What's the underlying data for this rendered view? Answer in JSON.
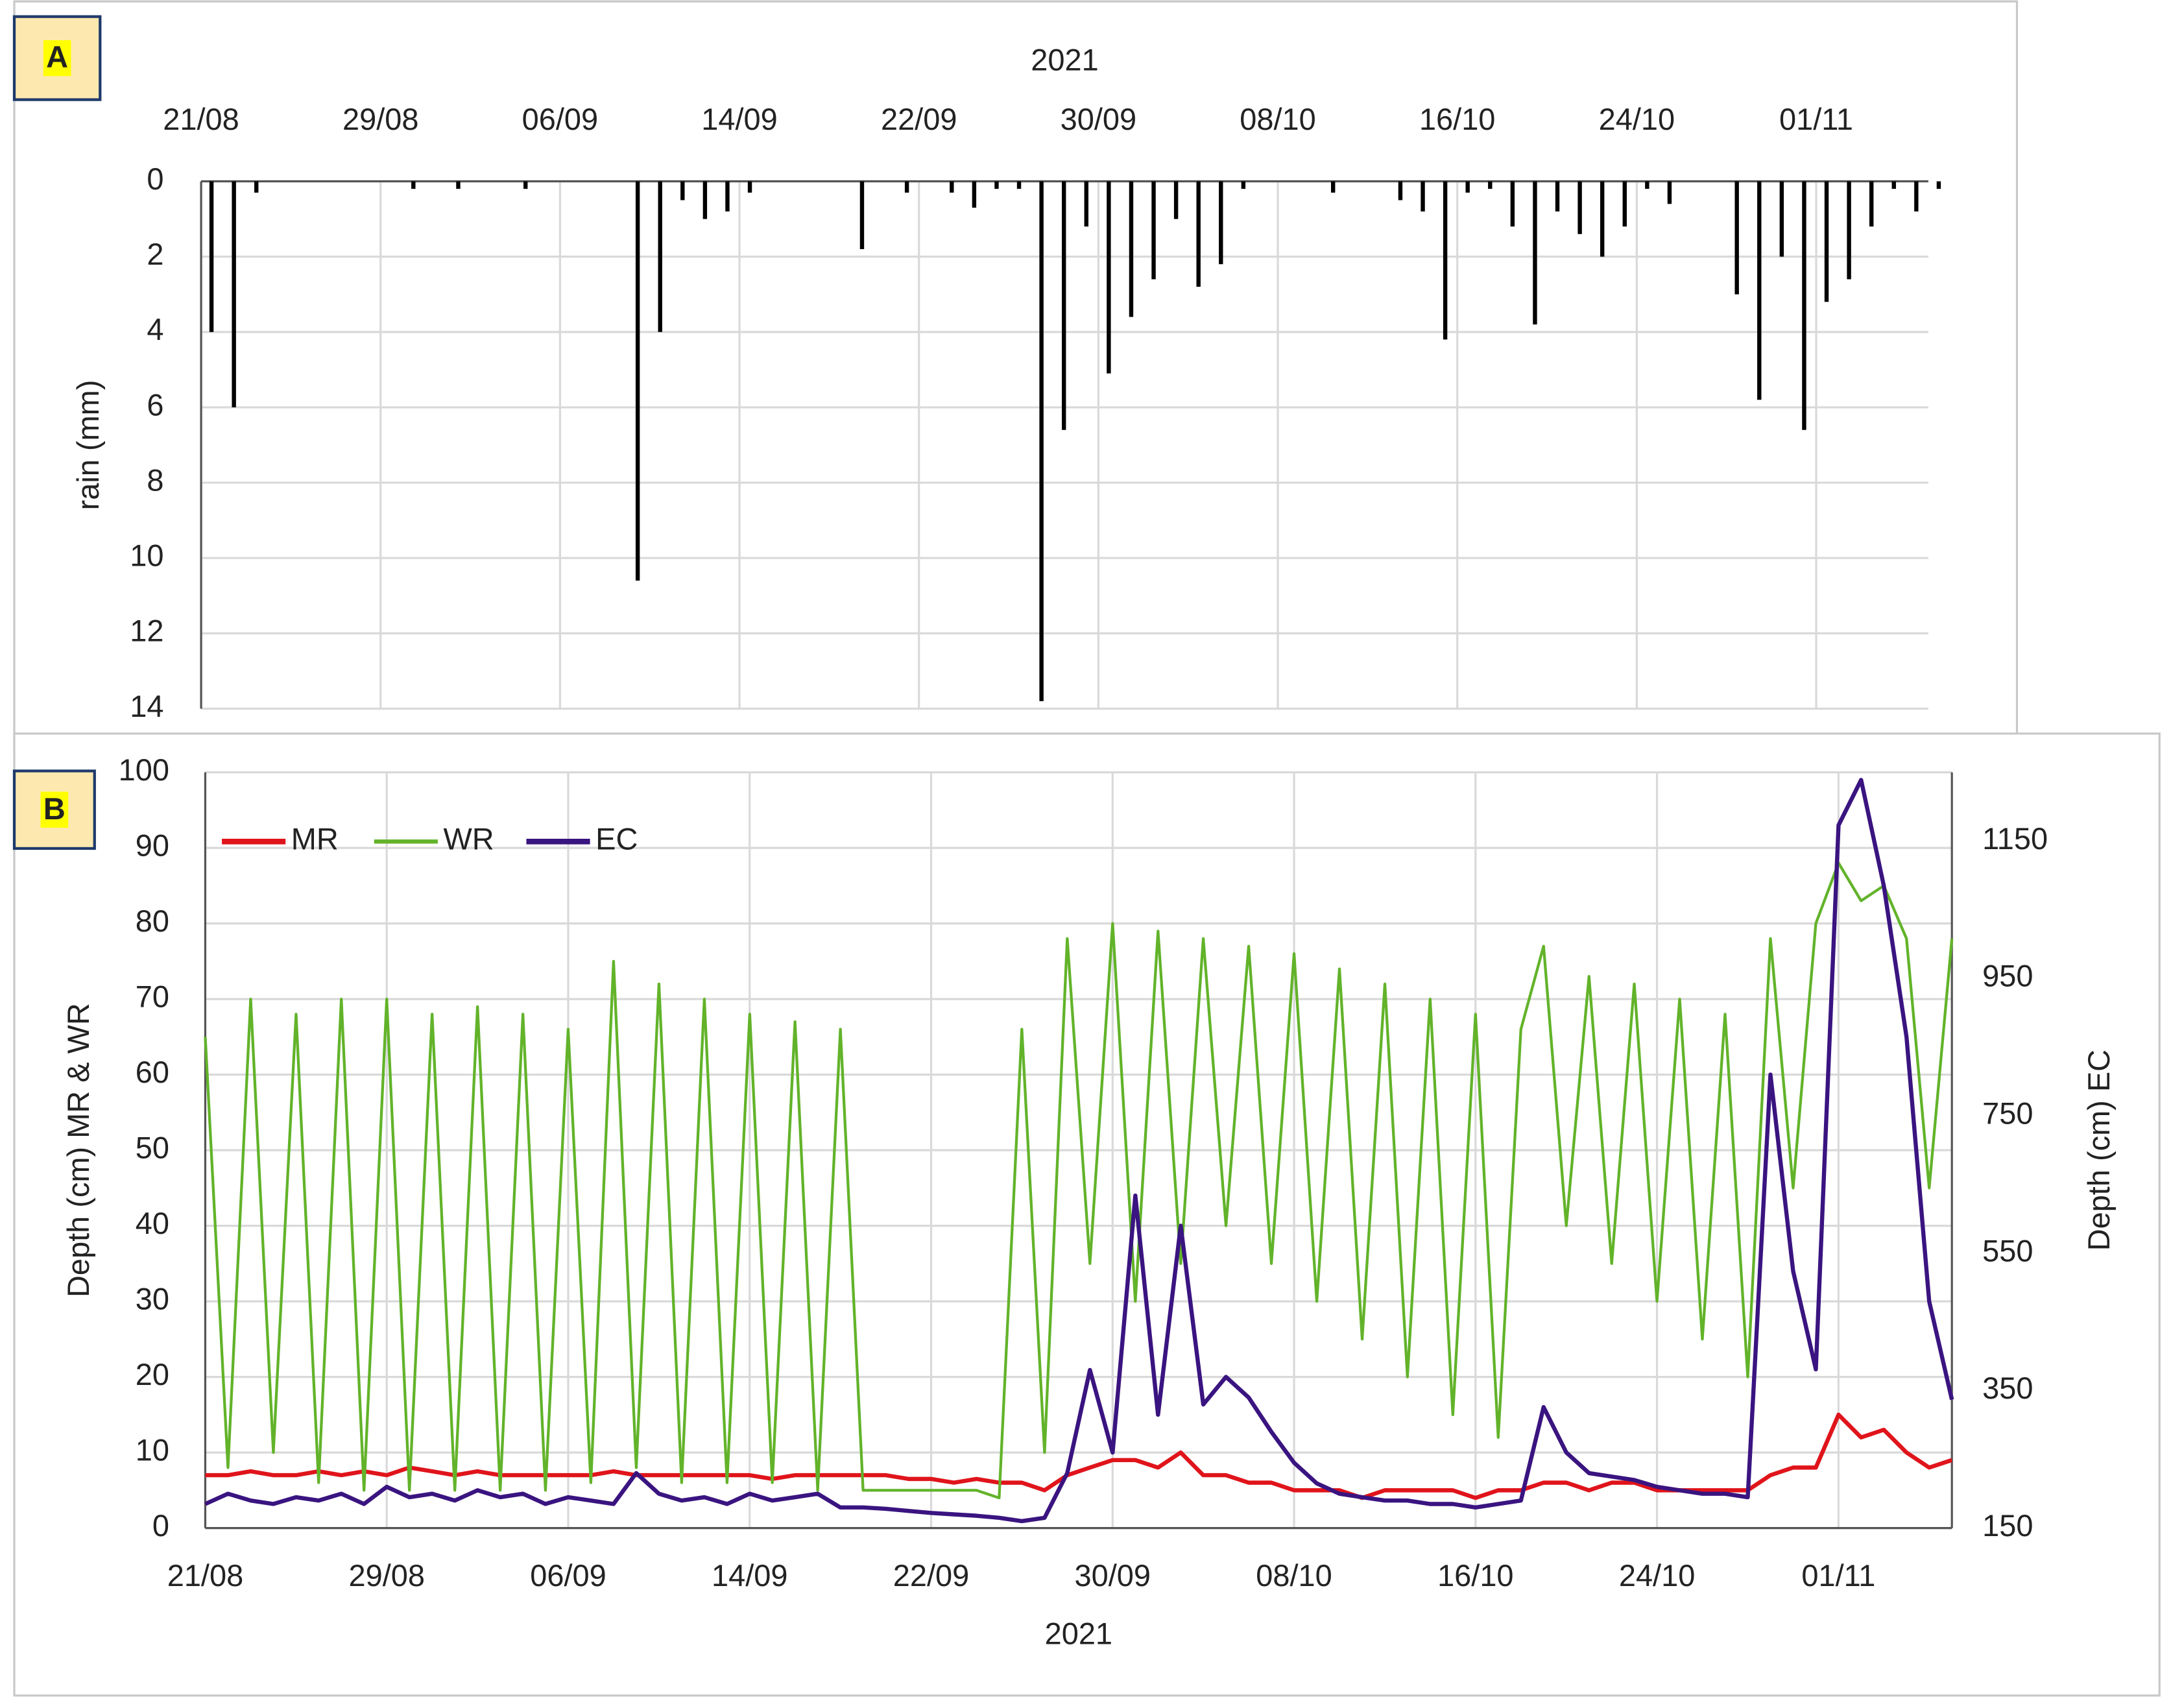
{
  "chart_data": [
    {
      "type": "bar",
      "panel_label": "A",
      "xlabel": "2021",
      "ylabel": "rain (mm)",
      "color": "#000000",
      "x_axis_position": "top",
      "y_inverted": true,
      "grid": true,
      "x": [
        "2021-08-21",
        "2021-08-22",
        "2021-08-23",
        "2021-08-24",
        "2021-08-25",
        "2021-08-26",
        "2021-08-27",
        "2021-08-28",
        "2021-08-29",
        "2021-08-30",
        "2021-08-31",
        "2021-09-01",
        "2021-09-02",
        "2021-09-03",
        "2021-09-04",
        "2021-09-05",
        "2021-09-06",
        "2021-09-07",
        "2021-09-08",
        "2021-09-09",
        "2021-09-10",
        "2021-09-11",
        "2021-09-12",
        "2021-09-13",
        "2021-09-14",
        "2021-09-15",
        "2021-09-16",
        "2021-09-17",
        "2021-09-18",
        "2021-09-19",
        "2021-09-20",
        "2021-09-21",
        "2021-09-22",
        "2021-09-23",
        "2021-09-24",
        "2021-09-25",
        "2021-09-26",
        "2021-09-27",
        "2021-09-28",
        "2021-09-29",
        "2021-09-30",
        "2021-10-01",
        "2021-10-02",
        "2021-10-03",
        "2021-10-04",
        "2021-10-05",
        "2021-10-06",
        "2021-10-07",
        "2021-10-08",
        "2021-10-09",
        "2021-10-10",
        "2021-10-11",
        "2021-10-12",
        "2021-10-13",
        "2021-10-14",
        "2021-10-15",
        "2021-10-16",
        "2021-10-17",
        "2021-10-18",
        "2021-10-19",
        "2021-10-20",
        "2021-10-21",
        "2021-10-22",
        "2021-10-23",
        "2021-10-24",
        "2021-10-25",
        "2021-10-26",
        "2021-10-27",
        "2021-10-28",
        "2021-10-29",
        "2021-10-30",
        "2021-10-31",
        "2021-11-01",
        "2021-11-02",
        "2021-11-03",
        "2021-11-04",
        "2021-11-05",
        "2021-11-06"
      ],
      "values": [
        4,
        6,
        0.3,
        0,
        0,
        0,
        0,
        0,
        0,
        0.2,
        0,
        0.2,
        0,
        0,
        0.2,
        0,
        0,
        0,
        0,
        10.6,
        4,
        0.5,
        1,
        0.8,
        0.3,
        0,
        0,
        0,
        0,
        1.8,
        0,
        0.3,
        0,
        0.3,
        0.7,
        0.2,
        0.2,
        13.8,
        6.6,
        1.2,
        5.1,
        3.6,
        2.6,
        1,
        2.8,
        2.2,
        0.2,
        0,
        0,
        0,
        0.3,
        0,
        0,
        0.5,
        0.8,
        4.2,
        0.3,
        0.2,
        1.2,
        3.8,
        0.8,
        1.4,
        2,
        1.2,
        0.2,
        0.6,
        0,
        0,
        3,
        5.8,
        2,
        6.6,
        3.2,
        2.6,
        1.2,
        0.2,
        0.8,
        0.2
      ],
      "xlim": [
        "2021-08-21",
        "2021-11-06"
      ],
      "xticks": [
        {
          "value": "2021-08-21",
          "label": "21/08"
        },
        {
          "value": "2021-08-29",
          "label": "29/08"
        },
        {
          "value": "2021-09-06",
          "label": "06/09"
        },
        {
          "value": "2021-09-14",
          "label": "14/09"
        },
        {
          "value": "2021-09-22",
          "label": "22/09"
        },
        {
          "value": "2021-09-30",
          "label": "30/09"
        },
        {
          "value": "2021-10-08",
          "label": "08/10"
        },
        {
          "value": "2021-10-16",
          "label": "16/10"
        },
        {
          "value": "2021-10-24",
          "label": "24/10"
        },
        {
          "value": "2021-11-01",
          "label": "01/11"
        }
      ],
      "ylim": [
        0,
        14
      ],
      "yticks": [
        0,
        2,
        4,
        6,
        8,
        10,
        12,
        14
      ]
    },
    {
      "type": "line",
      "panel_label": "B",
      "xlabel": "2021",
      "ylabel": "Depth (cm) MR & WR",
      "y2label": "Depth (cm) EC",
      "x_axis_position": "bottom",
      "grid": true,
      "legend": "top-left",
      "x": [
        "2021-08-21",
        "2021-08-22",
        "2021-08-23",
        "2021-08-24",
        "2021-08-25",
        "2021-08-26",
        "2021-08-27",
        "2021-08-28",
        "2021-08-29",
        "2021-08-30",
        "2021-08-31",
        "2021-09-01",
        "2021-09-02",
        "2021-09-03",
        "2021-09-04",
        "2021-09-05",
        "2021-09-06",
        "2021-09-07",
        "2021-09-08",
        "2021-09-09",
        "2021-09-10",
        "2021-09-11",
        "2021-09-12",
        "2021-09-13",
        "2021-09-14",
        "2021-09-15",
        "2021-09-16",
        "2021-09-17",
        "2021-09-18",
        "2021-09-19",
        "2021-09-20",
        "2021-09-21",
        "2021-09-22",
        "2021-09-23",
        "2021-09-24",
        "2021-09-25",
        "2021-09-26",
        "2021-09-27",
        "2021-09-28",
        "2021-09-29",
        "2021-09-30",
        "2021-10-01",
        "2021-10-02",
        "2021-10-03",
        "2021-10-04",
        "2021-10-05",
        "2021-10-06",
        "2021-10-07",
        "2021-10-08",
        "2021-10-09",
        "2021-10-10",
        "2021-10-11",
        "2021-10-12",
        "2021-10-13",
        "2021-10-14",
        "2021-10-15",
        "2021-10-16",
        "2021-10-17",
        "2021-10-18",
        "2021-10-19",
        "2021-10-20",
        "2021-10-21",
        "2021-10-22",
        "2021-10-23",
        "2021-10-24",
        "2021-10-25",
        "2021-10-26",
        "2021-10-27",
        "2021-10-28",
        "2021-10-29",
        "2021-10-30",
        "2021-10-31",
        "2021-11-01",
        "2021-11-02",
        "2021-11-03",
        "2021-11-04",
        "2021-11-05",
        "2021-11-06"
      ],
      "series": [
        {
          "name": "MR",
          "color": "#e0141b",
          "width": 3,
          "values": [
            7,
            7,
            7.5,
            7,
            7,
            7.5,
            7,
            7.5,
            7,
            8,
            7.5,
            7,
            7.5,
            7,
            7,
            7,
            7,
            7,
            7.5,
            7,
            7,
            7,
            7,
            7,
            7,
            6.5,
            7,
            7,
            7,
            7,
            7,
            6.5,
            6.5,
            6,
            6.5,
            6,
            6,
            5,
            7,
            8,
            9,
            9,
            8,
            10,
            7,
            7,
            6,
            6,
            5,
            5,
            5,
            4,
            5,
            5,
            5,
            5,
            4,
            5,
            5,
            6,
            6,
            5,
            6,
            6,
            5,
            5,
            5,
            5,
            5,
            7,
            8,
            8,
            15,
            12,
            13,
            10,
            8,
            9
          ]
        },
        {
          "name": "WR",
          "color": "#62b32a",
          "width": 2,
          "values": [
            65,
            8,
            70,
            10,
            68,
            6,
            70,
            5,
            70,
            5,
            68,
            5,
            69,
            5,
            68,
            5,
            66,
            6,
            75,
            8,
            72,
            6,
            70,
            6,
            68,
            6,
            67,
            5,
            66,
            5,
            5,
            5,
            5,
            5,
            5,
            4,
            66,
            10,
            78,
            35,
            80,
            30,
            79,
            35,
            78,
            40,
            77,
            35,
            76,
            30,
            74,
            25,
            72,
            20,
            70,
            15,
            68,
            12,
            66,
            77,
            40,
            73,
            35,
            72,
            30,
            70,
            25,
            68,
            20,
            78,
            45,
            80,
            88,
            83,
            85,
            78,
            45,
            78
          ]
        },
        {
          "name": "EC",
          "color": "#3a1480",
          "width": 3,
          "axis": "y2",
          "values": [
            185,
            200,
            190,
            185,
            195,
            190,
            200,
            185,
            210,
            195,
            200,
            190,
            205,
            195,
            200,
            185,
            195,
            190,
            185,
            230,
            200,
            190,
            195,
            185,
            200,
            190,
            195,
            200,
            180,
            180,
            178,
            175,
            172,
            170,
            168,
            165,
            160,
            165,
            230,
            380,
            260,
            634,
            315,
            590,
            330,
            370,
            340,
            290,
            245,
            215,
            200,
            195,
            190,
            190,
            185,
            185,
            180,
            185,
            190,
            326,
            260,
            230,
            225,
            220,
            210,
            205,
            200,
            200,
            195,
            810,
            524,
            381,
            1173,
            1239,
            1085,
            865,
            480,
            337
          ]
        }
      ],
      "xlim": [
        "2021-08-21",
        "2021-11-06"
      ],
      "xticks": [
        {
          "value": "2021-08-21",
          "label": "21/08"
        },
        {
          "value": "2021-08-29",
          "label": "29/08"
        },
        {
          "value": "2021-09-06",
          "label": "06/09"
        },
        {
          "value": "2021-09-14",
          "label": "14/09"
        },
        {
          "value": "2021-09-22",
          "label": "22/09"
        },
        {
          "value": "2021-09-30",
          "label": "30/09"
        },
        {
          "value": "2021-10-08",
          "label": "08/10"
        },
        {
          "value": "2021-10-16",
          "label": "16/10"
        },
        {
          "value": "2021-10-24",
          "label": "24/10"
        },
        {
          "value": "2021-11-01",
          "label": "01/11"
        }
      ],
      "ylim": [
        0,
        100
      ],
      "yticks": [
        0,
        10,
        20,
        30,
        40,
        50,
        60,
        70,
        80,
        90,
        100
      ],
      "y2lim": [
        150,
        1250
      ],
      "y2ticks": [
        150,
        350,
        550,
        750,
        950,
        1150
      ]
    }
  ]
}
